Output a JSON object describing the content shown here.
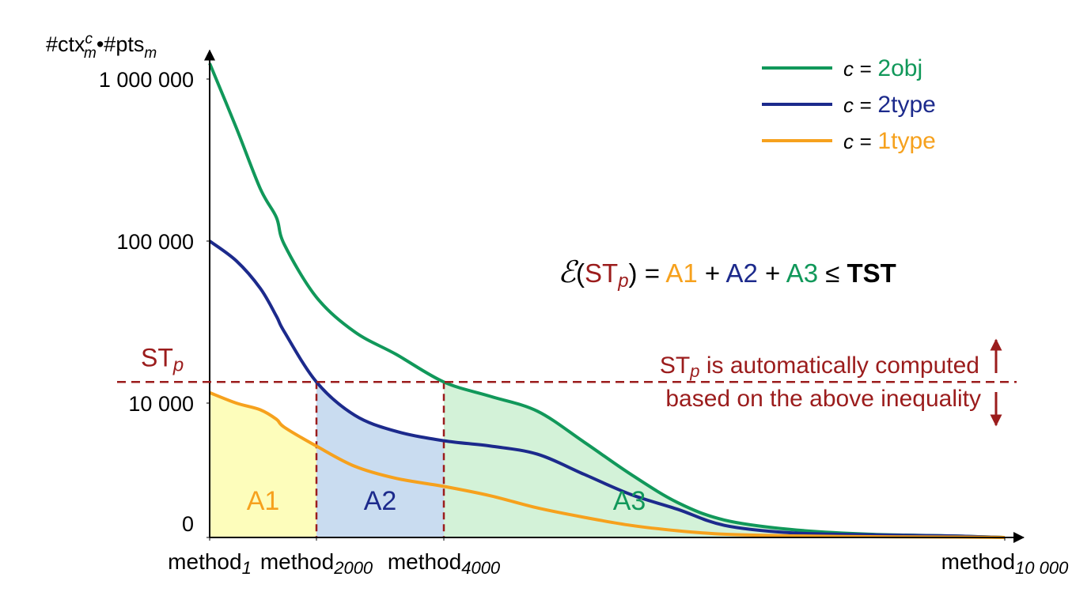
{
  "chart_data": {
    "type": "line",
    "y_label": [
      "#ctx",
      "c",
      "m",
      "•#pts",
      "m"
    ],
    "x": [
      1,
      500,
      950,
      1250,
      1400,
      2000,
      2600,
      3250,
      4000,
      4500,
      5000,
      5500,
      6000,
      6500,
      7000,
      7700,
      8550,
      9400,
      10000
    ],
    "series": [
      {
        "name": "2obj",
        "color": "#11985a",
        "values": [
          1250000,
          500000,
          210000,
          140000,
          95000,
          45000,
          27500,
          20000,
          13500,
          11000,
          9400,
          7100,
          4700,
          2600,
          1300,
          600,
          240,
          120,
          0
        ]
      },
      {
        "name": "2type",
        "color": "#1c2a8c",
        "values": [
          100000,
          75500,
          51000,
          34400,
          27500,
          13500,
          9100,
          7900,
          7200,
          6800,
          6200,
          4700,
          3200,
          2100,
          900,
          350,
          200,
          120,
          0
        ]
      },
      {
        "name": "1type",
        "color": "#f6a11d",
        "values": [
          11600,
          10000,
          9500,
          8800,
          8200,
          6800,
          5300,
          4400,
          3800,
          3100,
          2200,
          1500,
          900,
          500,
          240,
          120,
          60,
          30,
          0
        ]
      }
    ],
    "legend_prefix": "c =",
    "legend_position": "upper right",
    "xlim": [
      1,
      10200
    ],
    "xticks": [
      {
        "value": 1,
        "label": "method",
        "subscript": "1"
      },
      {
        "value": 2000,
        "label": "method",
        "subscript": "2000"
      },
      {
        "value": 4000,
        "label": "method",
        "subscript": "4000"
      },
      {
        "value": 10000,
        "label": "method",
        "subscript": "10 000"
      }
    ],
    "ylim": [
      0,
      1500000
    ],
    "yticks": [
      0,
      {
        "value": 10000,
        "label": "10 000"
      },
      {
        "value": 100000,
        "label": "100 000"
      },
      {
        "value": 1000000,
        "label": "1 000 000"
      }
    ],
    "threshold": {
      "value": 13500,
      "label": "ST",
      "subscript": "p",
      "color": "#9b1c1c"
    },
    "regions": [
      {
        "label": "A1",
        "from": 1,
        "to": 2000,
        "series": 2,
        "color": "#fdfdbb"
      },
      {
        "label": "A2",
        "from": 2000,
        "to": 4000,
        "series": 1,
        "color": "#c9dcf0"
      },
      {
        "label": "A3",
        "from": 4000,
        "to": 10000,
        "series": 0,
        "color": "#d3f2d8"
      }
    ],
    "equation": [
      "ℰ",
      "(",
      "ST",
      "p",
      ")",
      " = ",
      "A1",
      " + ",
      "A2",
      " + ",
      "A3",
      " ≤ ",
      "TST"
    ],
    "note": [
      "ST",
      "p",
      " is automatically computed",
      "based on the above inequality"
    ]
  }
}
